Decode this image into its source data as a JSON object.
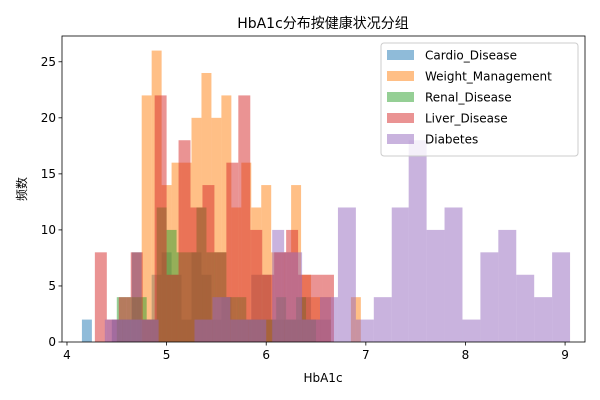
{
  "chart_data": {
    "type": "histogram",
    "title": "HbA1c分布按健康状况分组",
    "xlabel": "HbA1c",
    "ylabel": "频数",
    "xlim": [
      3.95,
      9.2
    ],
    "ylim": [
      0,
      27.3
    ],
    "xticks": [
      4,
      5,
      6,
      7,
      8,
      9
    ],
    "yticks": [
      0,
      5,
      10,
      15,
      20,
      25
    ],
    "grid": false,
    "legend_position": "top-right",
    "series": [
      {
        "name": "Cardio_Disease",
        "color": "#1f77b4",
        "opacity": 0.5,
        "bins": [
          {
            "x0": 4.15,
            "x1": 4.25,
            "count": 2
          },
          {
            "x0": 4.45,
            "x1": 4.55,
            "count": 2
          },
          {
            "x0": 4.55,
            "x1": 4.65,
            "count": 2
          },
          {
            "x0": 4.65,
            "x1": 4.75,
            "count": 8
          },
          {
            "x0": 4.75,
            "x1": 4.85,
            "count": 2
          },
          {
            "x0": 4.85,
            "x1": 4.95,
            "count": 6
          },
          {
            "x0": 4.95,
            "x1": 5.05,
            "count": 8
          },
          {
            "x0": 5.05,
            "x1": 5.15,
            "count": 6
          },
          {
            "x0": 5.15,
            "x1": 5.25,
            "count": 2
          },
          {
            "x0": 5.25,
            "x1": 5.35,
            "count": 8
          },
          {
            "x0": 5.35,
            "x1": 5.45,
            "count": 6
          },
          {
            "x0": 5.45,
            "x1": 5.55,
            "count": 2
          },
          {
            "x0": 5.55,
            "x1": 5.65,
            "count": 4
          },
          {
            "x0": 5.65,
            "x1": 5.75,
            "count": 2
          },
          {
            "x0": 5.75,
            "x1": 5.85,
            "count": 2
          },
          {
            "x0": 5.85,
            "x1": 5.95,
            "count": 6
          },
          {
            "x0": 5.95,
            "x1": 6.05,
            "count": 6
          },
          {
            "x0": 6.05,
            "x1": 6.15,
            "count": 2
          },
          {
            "x0": 6.15,
            "x1": 6.25,
            "count": 2
          },
          {
            "x0": 6.25,
            "x1": 6.35,
            "count": 2
          },
          {
            "x0": 6.35,
            "x1": 6.45,
            "count": 4
          },
          {
            "x0": 6.45,
            "x1": 6.55,
            "count": 2
          },
          {
            "x0": 6.55,
            "x1": 6.65,
            "count": 2
          }
        ]
      },
      {
        "name": "Weight_Management",
        "color": "#ff7f0e",
        "opacity": 0.5,
        "bins": [
          {
            "x0": 4.75,
            "x1": 4.85,
            "count": 22
          },
          {
            "x0": 4.85,
            "x1": 4.95,
            "count": 26
          },
          {
            "x0": 4.95,
            "x1": 5.05,
            "count": 14
          },
          {
            "x0": 5.05,
            "x1": 5.15,
            "count": 16
          },
          {
            "x0": 5.15,
            "x1": 5.25,
            "count": 16
          },
          {
            "x0": 5.25,
            "x1": 5.35,
            "count": 20
          },
          {
            "x0": 5.35,
            "x1": 5.45,
            "count": 24
          },
          {
            "x0": 5.45,
            "x1": 5.55,
            "count": 20
          },
          {
            "x0": 5.55,
            "x1": 5.65,
            "count": 22
          },
          {
            "x0": 5.65,
            "x1": 5.75,
            "count": 12
          },
          {
            "x0": 5.75,
            "x1": 5.85,
            "count": 16
          },
          {
            "x0": 5.85,
            "x1": 5.95,
            "count": 12
          },
          {
            "x0": 5.95,
            "x1": 6.05,
            "count": 14
          },
          {
            "x0": 6.05,
            "x1": 6.15,
            "count": 8
          },
          {
            "x0": 6.15,
            "x1": 6.25,
            "count": 8
          },
          {
            "x0": 6.25,
            "x1": 6.35,
            "count": 14
          },
          {
            "x0": 6.35,
            "x1": 6.45,
            "count": 6
          },
          {
            "x0": 6.45,
            "x1": 6.55,
            "count": 4
          },
          {
            "x0": 6.55,
            "x1": 6.65,
            "count": 4
          },
          {
            "x0": 6.85,
            "x1": 6.95,
            "count": 4
          }
        ]
      },
      {
        "name": "Renal_Disease",
        "color": "#2ca02c",
        "opacity": 0.5,
        "bins": [
          {
            "x0": 4.5,
            "x1": 4.6,
            "count": 4
          },
          {
            "x0": 4.6,
            "x1": 4.7,
            "count": 4
          },
          {
            "x0": 4.7,
            "x1": 4.8,
            "count": 4
          },
          {
            "x0": 4.8,
            "x1": 4.9,
            "count": 2
          },
          {
            "x0": 4.9,
            "x1": 5.0,
            "count": 12
          },
          {
            "x0": 5.0,
            "x1": 5.1,
            "count": 10
          },
          {
            "x0": 5.1,
            "x1": 5.2,
            "count": 8
          },
          {
            "x0": 5.2,
            "x1": 5.3,
            "count": 8
          },
          {
            "x0": 5.3,
            "x1": 5.4,
            "count": 12
          },
          {
            "x0": 5.4,
            "x1": 5.5,
            "count": 8
          },
          {
            "x0": 5.5,
            "x1": 5.6,
            "count": 8
          },
          {
            "x0": 5.6,
            "x1": 5.7,
            "count": 4
          },
          {
            "x0": 5.7,
            "x1": 5.8,
            "count": 4
          },
          {
            "x0": 5.8,
            "x1": 5.9,
            "count": 2
          },
          {
            "x0": 5.9,
            "x1": 6.0,
            "count": 2
          },
          {
            "x0": 6.0,
            "x1": 6.1,
            "count": 2
          },
          {
            "x0": 6.1,
            "x1": 6.2,
            "count": 4
          },
          {
            "x0": 6.2,
            "x1": 6.3,
            "count": 2
          },
          {
            "x0": 6.3,
            "x1": 6.4,
            "count": 4
          },
          {
            "x0": 6.4,
            "x1": 6.5,
            "count": 2
          }
        ]
      },
      {
        "name": "Liver_Disease",
        "color": "#d62728",
        "opacity": 0.5,
        "bins": [
          {
            "x0": 4.28,
            "x1": 4.4,
            "count": 8
          },
          {
            "x0": 4.4,
            "x1": 4.52,
            "count": 2
          },
          {
            "x0": 4.52,
            "x1": 4.64,
            "count": 4
          },
          {
            "x0": 4.64,
            "x1": 4.76,
            "count": 8
          },
          {
            "x0": 4.76,
            "x1": 4.88,
            "count": 2
          },
          {
            "x0": 4.88,
            "x1": 5.0,
            "count": 22
          },
          {
            "x0": 5.0,
            "x1": 5.12,
            "count": 6
          },
          {
            "x0": 5.12,
            "x1": 5.24,
            "count": 18
          },
          {
            "x0": 5.24,
            "x1": 5.36,
            "count": 12
          },
          {
            "x0": 5.36,
            "x1": 5.48,
            "count": 14
          },
          {
            "x0": 5.48,
            "x1": 5.6,
            "count": 8
          },
          {
            "x0": 5.6,
            "x1": 5.72,
            "count": 16
          },
          {
            "x0": 5.72,
            "x1": 5.84,
            "count": 22
          },
          {
            "x0": 5.84,
            "x1": 5.96,
            "count": 10
          },
          {
            "x0": 5.96,
            "x1": 6.08,
            "count": 6
          },
          {
            "x0": 6.08,
            "x1": 6.2,
            "count": 8
          },
          {
            "x0": 6.2,
            "x1": 6.32,
            "count": 10
          },
          {
            "x0": 6.32,
            "x1": 6.44,
            "count": 6
          },
          {
            "x0": 6.44,
            "x1": 6.56,
            "count": 6
          },
          {
            "x0": 6.56,
            "x1": 6.68,
            "count": 6
          }
        ]
      },
      {
        "name": "Diabetes",
        "color": "#9467bd",
        "opacity": 0.5,
        "bins": [
          {
            "x0": 4.38,
            "x1": 4.56,
            "count": 2
          },
          {
            "x0": 4.56,
            "x1": 4.74,
            "count": 2
          },
          {
            "x0": 4.74,
            "x1": 4.92,
            "count": 2
          },
          {
            "x0": 5.28,
            "x1": 5.46,
            "count": 2
          },
          {
            "x0": 5.46,
            "x1": 5.64,
            "count": 4
          },
          {
            "x0": 5.64,
            "x1": 5.82,
            "count": 2
          },
          {
            "x0": 5.82,
            "x1": 6.0,
            "count": 2
          },
          {
            "x0": 6.06,
            "x1": 6.18,
            "count": 10
          },
          {
            "x0": 6.18,
            "x1": 6.36,
            "count": 8
          },
          {
            "x0": 6.36,
            "x1": 6.54,
            "count": 2
          },
          {
            "x0": 6.54,
            "x1": 6.72,
            "count": 4
          },
          {
            "x0": 6.72,
            "x1": 6.9,
            "count": 12
          },
          {
            "x0": 6.9,
            "x1": 7.08,
            "count": 2
          },
          {
            "x0": 7.08,
            "x1": 7.26,
            "count": 4
          },
          {
            "x0": 7.26,
            "x1": 7.43,
            "count": 12
          },
          {
            "x0": 7.43,
            "x1": 7.61,
            "count": 18
          },
          {
            "x0": 7.61,
            "x1": 7.79,
            "count": 10
          },
          {
            "x0": 7.79,
            "x1": 7.97,
            "count": 12
          },
          {
            "x0": 7.97,
            "x1": 8.15,
            "count": 2
          },
          {
            "x0": 8.15,
            "x1": 8.33,
            "count": 8
          },
          {
            "x0": 8.33,
            "x1": 8.51,
            "count": 10
          },
          {
            "x0": 8.51,
            "x1": 8.69,
            "count": 6
          },
          {
            "x0": 8.69,
            "x1": 8.87,
            "count": 4
          },
          {
            "x0": 8.87,
            "x1": 9.05,
            "count": 8
          }
        ]
      }
    ]
  }
}
